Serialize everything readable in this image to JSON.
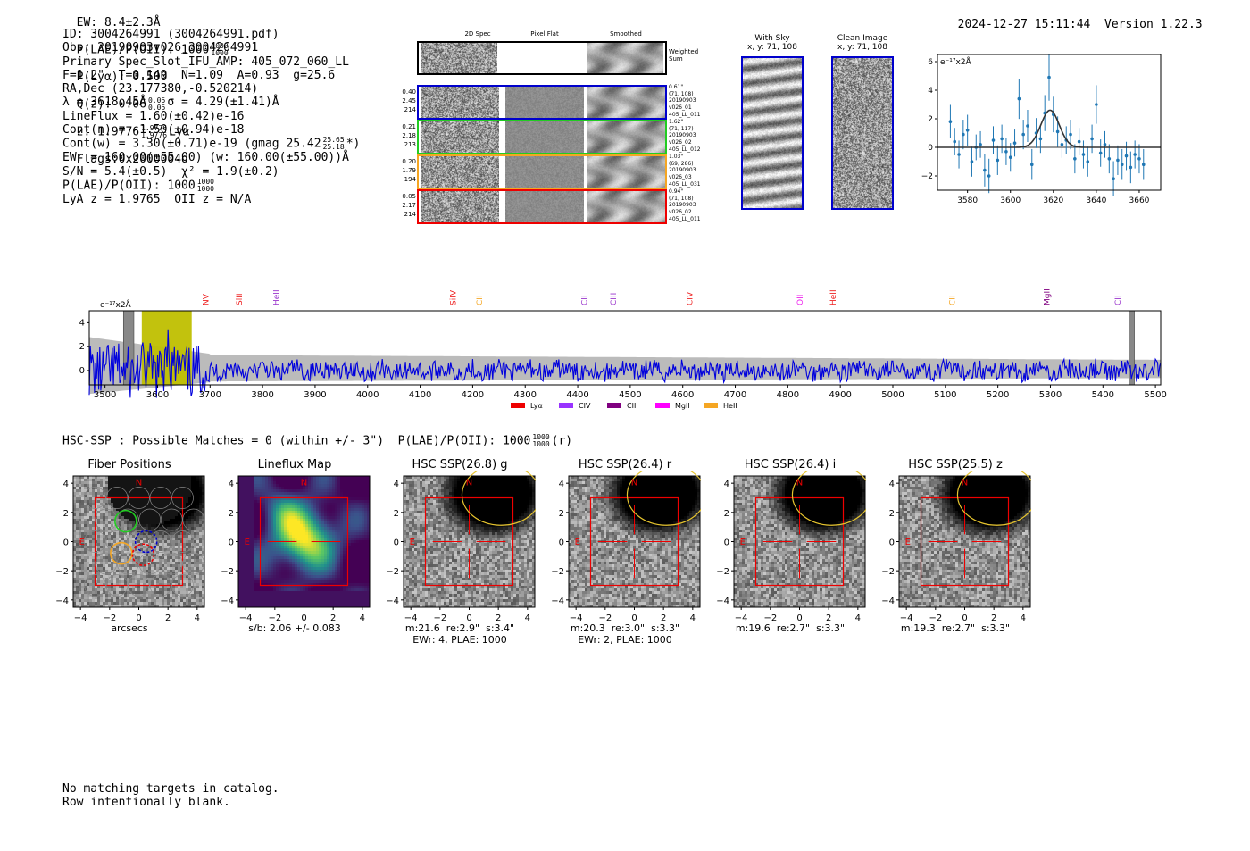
{
  "header": {
    "ew": "EW: 8.4±2.3Å",
    "plae_label": "P(LAE)/P(OII): 1000",
    "plae_hi": "1000",
    "plae_lo": "1000",
    "plya": "P(Lyα): 0.500",
    "qz_label": "Q(z): 0.06",
    "qz_hi": "0.06",
    "qz_lo": "0.06",
    "z_label": "z: 1.9776",
    "z_hi": "1.9776",
    "z_lo": "1.9776",
    "z_line": "Lyα",
    "flags": "Flags:0x2000004d",
    "datetime": "2024-12-27 15:11:44",
    "version": "Version 1.22.3"
  },
  "info": {
    "lines": [
      "ID: 3004264991 (3004264991.pdf)",
      "Obs: 20190903v026_3004264991",
      "Primary Spec_Slot_IFU_AMP: 405_072_060_LL",
      "F=1.2\"  T=0.149  N=1.09  A=0.93  g=25.6",
      "RA,Dec (23.177380,-0.520214)",
      "λ = 3618.45Å   σ = 4.29(±1.41)Å",
      "LineFlux = 1.60(±0.42)e-16",
      "Cont(n) = -1.50(±0.94)e-18"
    ],
    "cont_w": "Cont(w) = 3.30(±0.71)e-19 (gmag 25.42",
    "cont_w_hi": "25.65",
    "cont_w_lo": "25.18",
    "cont_w_end": "*)",
    "ewr": "EWr = 160.00(±55.00) (w: 160.00(±55.00))Å",
    "sn": "S/N = 5.4(±0.5)  χ² = 1.9(±0.2)",
    "plae": "P(LAE)/P(OII): 1000",
    "plae_hi": "1000",
    "plae_lo": "1000",
    "lya": "LyA z = 1.9765  OII z = N/A"
  },
  "cutouts": {
    "col_labels": [
      "2D Spec",
      "Pixel Flat",
      "Smoothed"
    ],
    "weighted_sum": "Weighted Sum",
    "rows": [
      {
        "left": [
          "0.40",
          "2.45",
          "214"
        ],
        "right": [
          "0.61\"",
          "(71, 108)",
          "20190903",
          "v026_01",
          "405_LL_011"
        ],
        "color": "#0000cc"
      },
      {
        "left": [
          "0.21",
          "2.18",
          "213"
        ],
        "right": [
          "1.62\"",
          "(71, 117)",
          "20190903",
          "v026_02",
          "405_LL_012"
        ],
        "color": "#22cc22"
      },
      {
        "left": [
          "0.20",
          "1.79",
          "194"
        ],
        "right": [
          "1.03\"",
          "(69, 286)",
          "20190903",
          "v026_03",
          "405_LL_031"
        ],
        "color": "#f5a623"
      },
      {
        "left": [
          "0.05",
          "2.17",
          "214"
        ],
        "right": [
          "0.94\"",
          "(71, 108)",
          "20190903",
          "v026_02",
          "405_LL_011"
        ],
        "color": "#ee0000"
      }
    ]
  },
  "sky": {
    "with_sky_title": "With Sky",
    "with_sky_sub": "x, y: 71, 108",
    "clean_title": "Clean Image",
    "clean_sub": "x, y: 71, 108"
  },
  "zoom_plot": {
    "unit": "e⁻¹⁷x2Å",
    "yticks": [
      "6",
      "4",
      "2",
      "0",
      "−2"
    ],
    "xticks": [
      "3580",
      "3600",
      "3620",
      "3640",
      "3660"
    ]
  },
  "full_spec": {
    "unit": "e⁻¹⁷x2Å",
    "yticks": [
      "4",
      "2",
      "0"
    ],
    "xticks": [
      "3500",
      "3600",
      "3700",
      "3800",
      "3900",
      "4000",
      "4100",
      "4200",
      "4300",
      "4400",
      "4500",
      "4600",
      "4700",
      "4800",
      "4900",
      "5000",
      "5100",
      "5200",
      "5300",
      "5400",
      "5500"
    ],
    "lines": [
      {
        "name": "NV",
        "w": 3692,
        "color": "#ee2222"
      },
      {
        "name": "SiII",
        "w": 3756,
        "color": "#ee2222"
      },
      {
        "name": "HeII",
        "w": 3826,
        "color": "#9933cc"
      },
      {
        "name": "SiIV",
        "w": 4163,
        "color": "#ee2222"
      },
      {
        "name": "CII",
        "w": 4213,
        "color": "#f5a623"
      },
      {
        "name": "CII",
        "w": 4413,
        "color": "#9933cc"
      },
      {
        "name": "CIII",
        "w": 4468,
        "color": "#9933cc"
      },
      {
        "name": "CIV",
        "w": 4613,
        "color": "#ee2222"
      },
      {
        "name": "OII",
        "w": 4823,
        "color": "#ee22ee"
      },
      {
        "name": "HeII",
        "w": 4886,
        "color": "#ee2222"
      },
      {
        "name": "CII",
        "w": 5113,
        "color": "#f5a623"
      },
      {
        "name": "MgII",
        "w": 5293,
        "color": "#800080"
      },
      {
        "name": "CII",
        "w": 5428,
        "color": "#9933cc"
      }
    ],
    "legend": [
      {
        "name": "Lyα",
        "color": "#ee0000"
      },
      {
        "name": "CIV",
        "color": "#9933ff"
      },
      {
        "name": "CIII",
        "color": "#800080"
      },
      {
        "name": "MgII",
        "color": "#ff00ff"
      },
      {
        "name": "HeII",
        "color": "#f5a623"
      }
    ]
  },
  "hsc": {
    "header": "HSC-SSP : Possible Matches = 0 (within +/- 3\")  P(LAE)/P(OII): 1000",
    "header_hi": "1000",
    "header_lo": "1000",
    "header_end": "(r)",
    "panels": [
      {
        "title": "Fiber Positions",
        "cap1": "arcsecs",
        "cap2": ""
      },
      {
        "title": "Lineflux Map",
        "cap1": "s/b: 2.06 +/- 0.083",
        "cap2": ""
      },
      {
        "title": "HSC SSP(26.8) g",
        "cap1": "m:21.6  re:2.9\"  s:3.4\"",
        "cap2": "EWr: 4, PLAE: 1000"
      },
      {
        "title": "HSC SSP(26.4) r",
        "cap1": "m:20.3  re:3.0\"  s:3.3\"",
        "cap2": "EWr: 2, PLAE: 1000"
      },
      {
        "title": "HSC SSP(26.4) i",
        "cap1": "m:19.6  re:2.7\"  s:3.3\"",
        "cap2": ""
      },
      {
        "title": "HSC SSP(25.5) z",
        "cap1": "m:19.3  re:2.7\"  s:3.3\"",
        "cap2": ""
      }
    ],
    "ticks": [
      "4",
      "2",
      "0",
      "−2",
      "−4"
    ],
    "xticks": [
      "−4",
      "−2",
      "0",
      "2",
      "4"
    ],
    "n_label": "N",
    "e_label": "E"
  },
  "footer": {
    "line1": "No matching targets in catalog.",
    "line2": "Row intentionally blank."
  },
  "chart_data": [
    {
      "type": "scatter",
      "title": "",
      "xlabel": "",
      "ylabel": "e-17x2Å",
      "xlim": [
        3566,
        3670
      ],
      "ylim": [
        -3,
        6.5
      ],
      "points": [
        {
          "x": 3572,
          "y": 1.8
        },
        {
          "x": 3574,
          "y": 0.4
        },
        {
          "x": 3576,
          "y": -0.5
        },
        {
          "x": 3578,
          "y": 0.9
        },
        {
          "x": 3580,
          "y": 1.2
        },
        {
          "x": 3582,
          "y": -1.0
        },
        {
          "x": 3584,
          "y": 0.0
        },
        {
          "x": 3586,
          "y": 0.2
        },
        {
          "x": 3588,
          "y": -1.6
        },
        {
          "x": 3590,
          "y": -2.0
        },
        {
          "x": 3592,
          "y": 0.5
        },
        {
          "x": 3594,
          "y": -0.9
        },
        {
          "x": 3596,
          "y": 0.6
        },
        {
          "x": 3598,
          "y": -0.3
        },
        {
          "x": 3600,
          "y": -0.7
        },
        {
          "x": 3602,
          "y": 0.3
        },
        {
          "x": 3604,
          "y": 3.4
        },
        {
          "x": 3606,
          "y": 0.9
        },
        {
          "x": 3608,
          "y": 1.5
        },
        {
          "x": 3610,
          "y": -1.2
        },
        {
          "x": 3612,
          "y": 1.0
        },
        {
          "x": 3614,
          "y": 0.6
        },
        {
          "x": 3616,
          "y": 2.4
        },
        {
          "x": 3618,
          "y": 4.9
        },
        {
          "x": 3620,
          "y": 2.3
        },
        {
          "x": 3622,
          "y": 1.1
        },
        {
          "x": 3624,
          "y": 0.2
        },
        {
          "x": 3626,
          "y": 0.5
        },
        {
          "x": 3628,
          "y": 0.9
        },
        {
          "x": 3630,
          "y": -0.8
        },
        {
          "x": 3632,
          "y": 0.4
        },
        {
          "x": 3634,
          "y": -0.5
        },
        {
          "x": 3636,
          "y": -1.0
        },
        {
          "x": 3638,
          "y": 0.6
        },
        {
          "x": 3640,
          "y": 3.0
        },
        {
          "x": 3642,
          "y": -0.4
        },
        {
          "x": 3644,
          "y": 0.2
        },
        {
          "x": 3646,
          "y": -0.8
        },
        {
          "x": 3648,
          "y": -2.2
        },
        {
          "x": 3650,
          "y": -0.9
        },
        {
          "x": 3652,
          "y": -1.2
        },
        {
          "x": 3654,
          "y": -0.6
        },
        {
          "x": 3656,
          "y": -1.4
        },
        {
          "x": 3658,
          "y": -0.5
        },
        {
          "x": 3660,
          "y": -0.8
        },
        {
          "x": 3662,
          "y": -1.2
        }
      ],
      "model": {
        "type": "gaussian",
        "center": 3618.45,
        "sigma": 4.29,
        "amplitude": 2.6
      }
    },
    {
      "type": "line",
      "title": "",
      "xlabel": "",
      "ylabel": "e-17x2Å",
      "xlim": [
        3470,
        5510
      ],
      "ylim": [
        -1.2,
        5
      ],
      "highlight_range": [
        3570,
        3665
      ],
      "masked_ranges": [
        [
          3535,
          3555
        ],
        [
          5450,
          5460
        ]
      ]
    }
  ]
}
